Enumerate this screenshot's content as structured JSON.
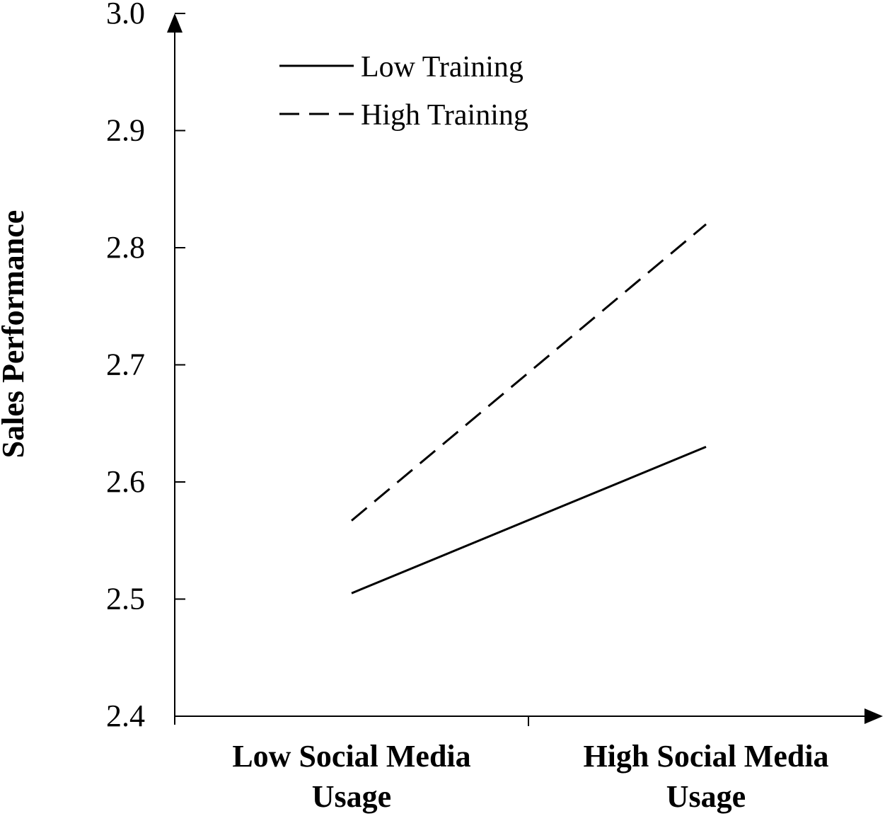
{
  "chart_data": {
    "type": "line",
    "title": "",
    "categories": [
      [
        "Low Social Media",
        "Usage"
      ],
      [
        "High Social Media",
        "Usage"
      ]
    ],
    "ylabel": "Sales Performance",
    "xlabel": "",
    "ylim": [
      2.4,
      3.0
    ],
    "yticks": [
      "2.4",
      "2.5",
      "2.6",
      "2.7",
      "2.8",
      "2.9",
      "3.0"
    ],
    "legend_position": "top-left",
    "grid": false,
    "series": [
      {
        "name": "Low Training",
        "style": "solid",
        "values": [
          2.505,
          2.63
        ]
      },
      {
        "name": "High Training",
        "style": "dashed",
        "values": [
          2.567,
          2.82
        ]
      }
    ],
    "colors": {
      "line": "#000000",
      "axis": "#000000"
    }
  }
}
